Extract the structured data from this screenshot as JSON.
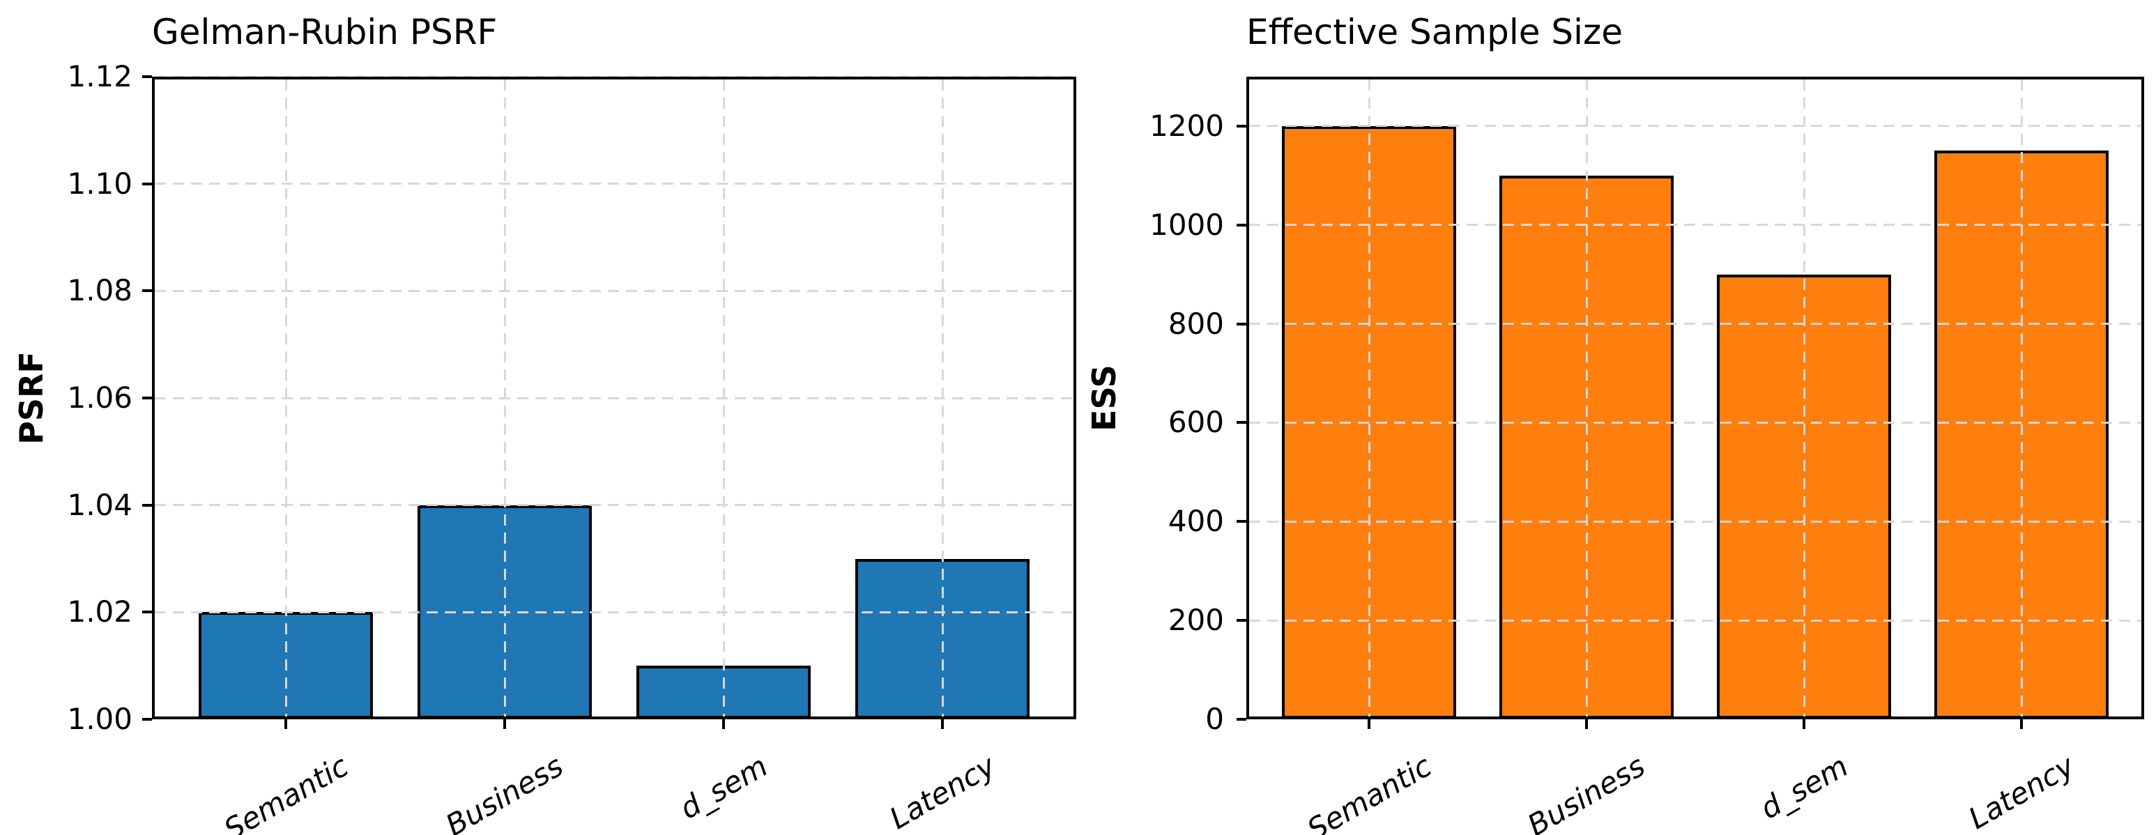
{
  "figure": {
    "background": "#ffffff"
  },
  "chart_data": [
    {
      "type": "bar",
      "title": "Gelman-Rubin PSRF",
      "ylabel": "PSRF",
      "xlabel": "",
      "categories": [
        "Semantic",
        "Business",
        "d_sem",
        "Latency"
      ],
      "values": [
        1.02,
        1.04,
        1.01,
        1.03
      ],
      "ylim": [
        1.0,
        1.12
      ],
      "yticks": [
        1.0,
        1.02,
        1.04,
        1.06,
        1.08,
        1.1,
        1.12
      ],
      "ytick_labels": [
        "1.00",
        "1.02",
        "1.04",
        "1.06",
        "1.08",
        "1.10",
        "1.12"
      ],
      "bar_color": "#1f77b4",
      "edge_color": "#000000",
      "grid": "dashed",
      "grid_color": "#d8d8d8",
      "legend": "none",
      "xtick_rotation_deg": 30
    },
    {
      "type": "bar",
      "title": "Effective Sample Size",
      "ylabel": "ESS",
      "xlabel": "",
      "categories": [
        "Semantic",
        "Business",
        "d_sem",
        "Latency"
      ],
      "values": [
        1200,
        1100,
        900,
        1150
      ],
      "ylim": [
        0,
        1300
      ],
      "yticks": [
        0,
        200,
        400,
        600,
        800,
        1000,
        1200
      ],
      "ytick_labels": [
        "0",
        "200",
        "400",
        "600",
        "800",
        "1000",
        "1200"
      ],
      "bar_color": "#ff7f0e",
      "edge_color": "#000000",
      "grid": "dashed",
      "grid_color": "#d8d8d8",
      "legend": "none",
      "xtick_rotation_deg": 30
    }
  ]
}
